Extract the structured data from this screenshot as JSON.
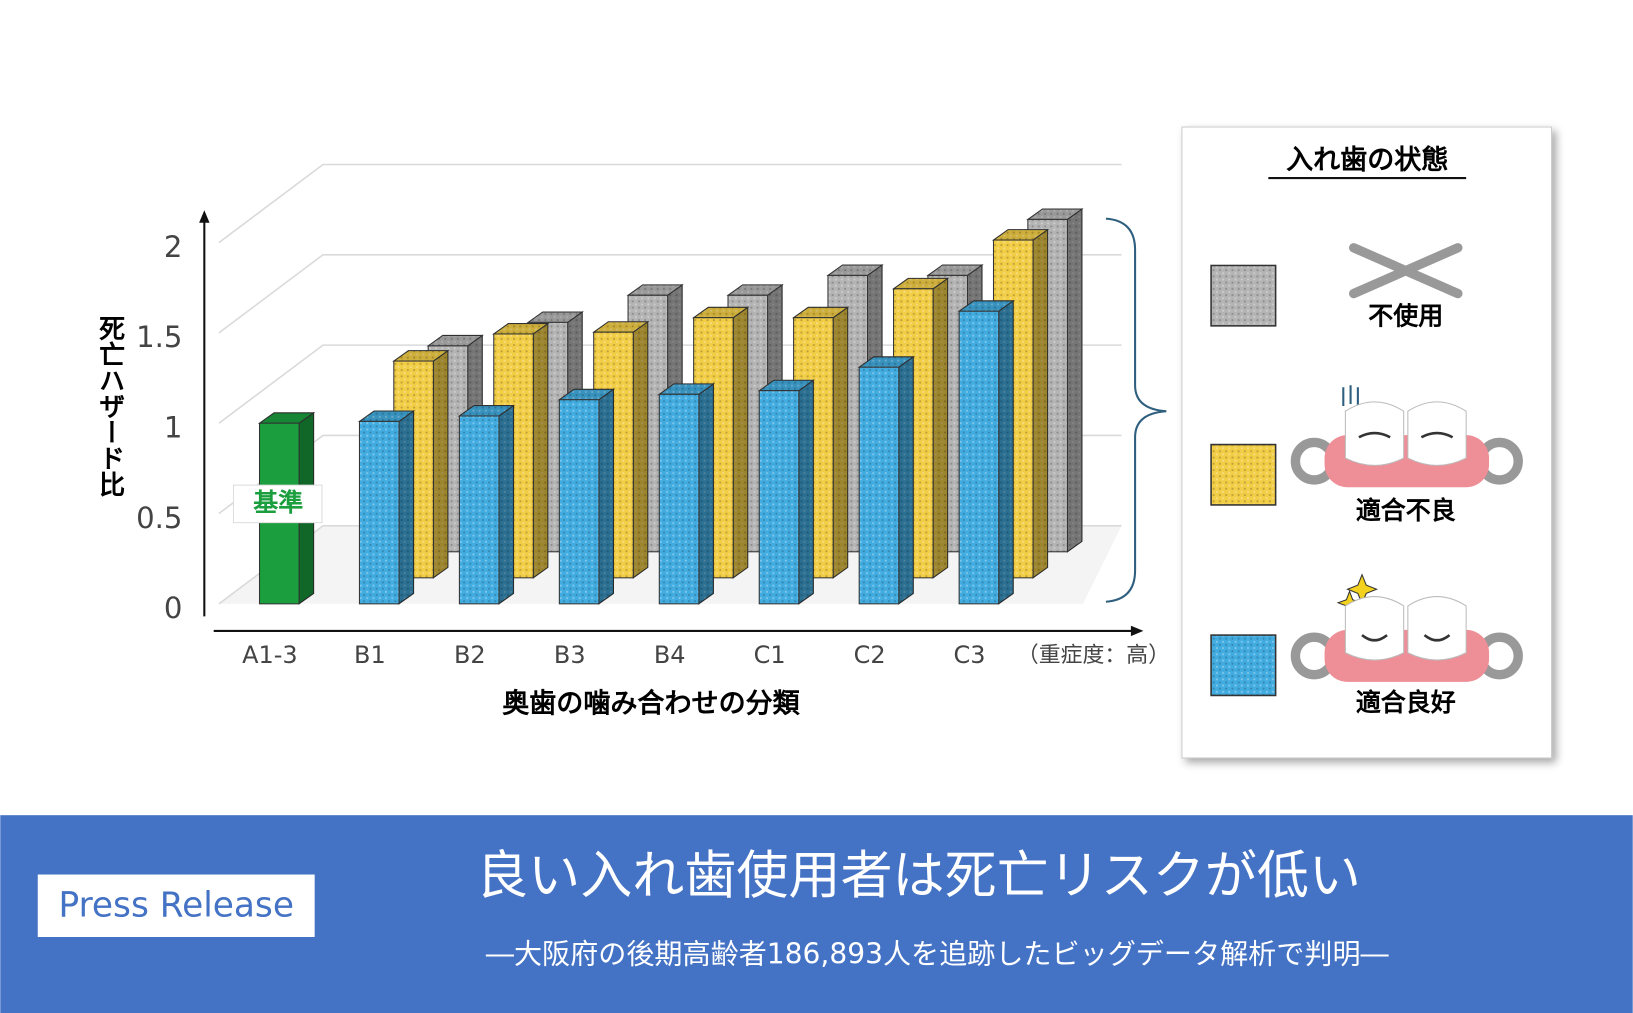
{
  "chart_data": {
    "type": "bar3d",
    "y_label": "死亡ハザード比",
    "x_label": "奥歯の噛み合わせの分類",
    "x_note": "（重症度：高）",
    "legend_title": "入れ歯の状態",
    "reference": {
      "category": "A1-3",
      "label": "基準",
      "value": 1,
      "color": "#1a9e3e"
    },
    "categories": [
      "B1",
      "B2",
      "B3",
      "B4",
      "C1",
      "C2",
      "C3"
    ],
    "series": [
      {
        "name": "不使用",
        "color": "#b4b4b4",
        "values": [
          1.14,
          1.27,
          1.42,
          1.42,
          1.53,
          1.53,
          1.84
        ]
      },
      {
        "name": "適合不良",
        "color": "#f2cd46",
        "values": [
          1.2,
          1.35,
          1.36,
          1.44,
          1.44,
          1.6,
          1.87
        ]
      },
      {
        "name": "適合良好",
        "color": "#42ace0",
        "values": [
          1.01,
          1.04,
          1.13,
          1.16,
          1.18,
          1.31,
          1.62
        ]
      }
    ],
    "ylim": [
      0,
      2
    ],
    "yticks": [
      0,
      0.5,
      1,
      {
        "value": 1.5,
        "label": "1.5"
      },
      2
    ],
    "grid": true
  },
  "banner": {
    "badge": "Press Release",
    "title": "良い入れ歯使用者は死亡リスクが低い",
    "subtitle": "―大阪府の後期高齢者186,893人を追跡したビッグデータ解析で判明―"
  }
}
